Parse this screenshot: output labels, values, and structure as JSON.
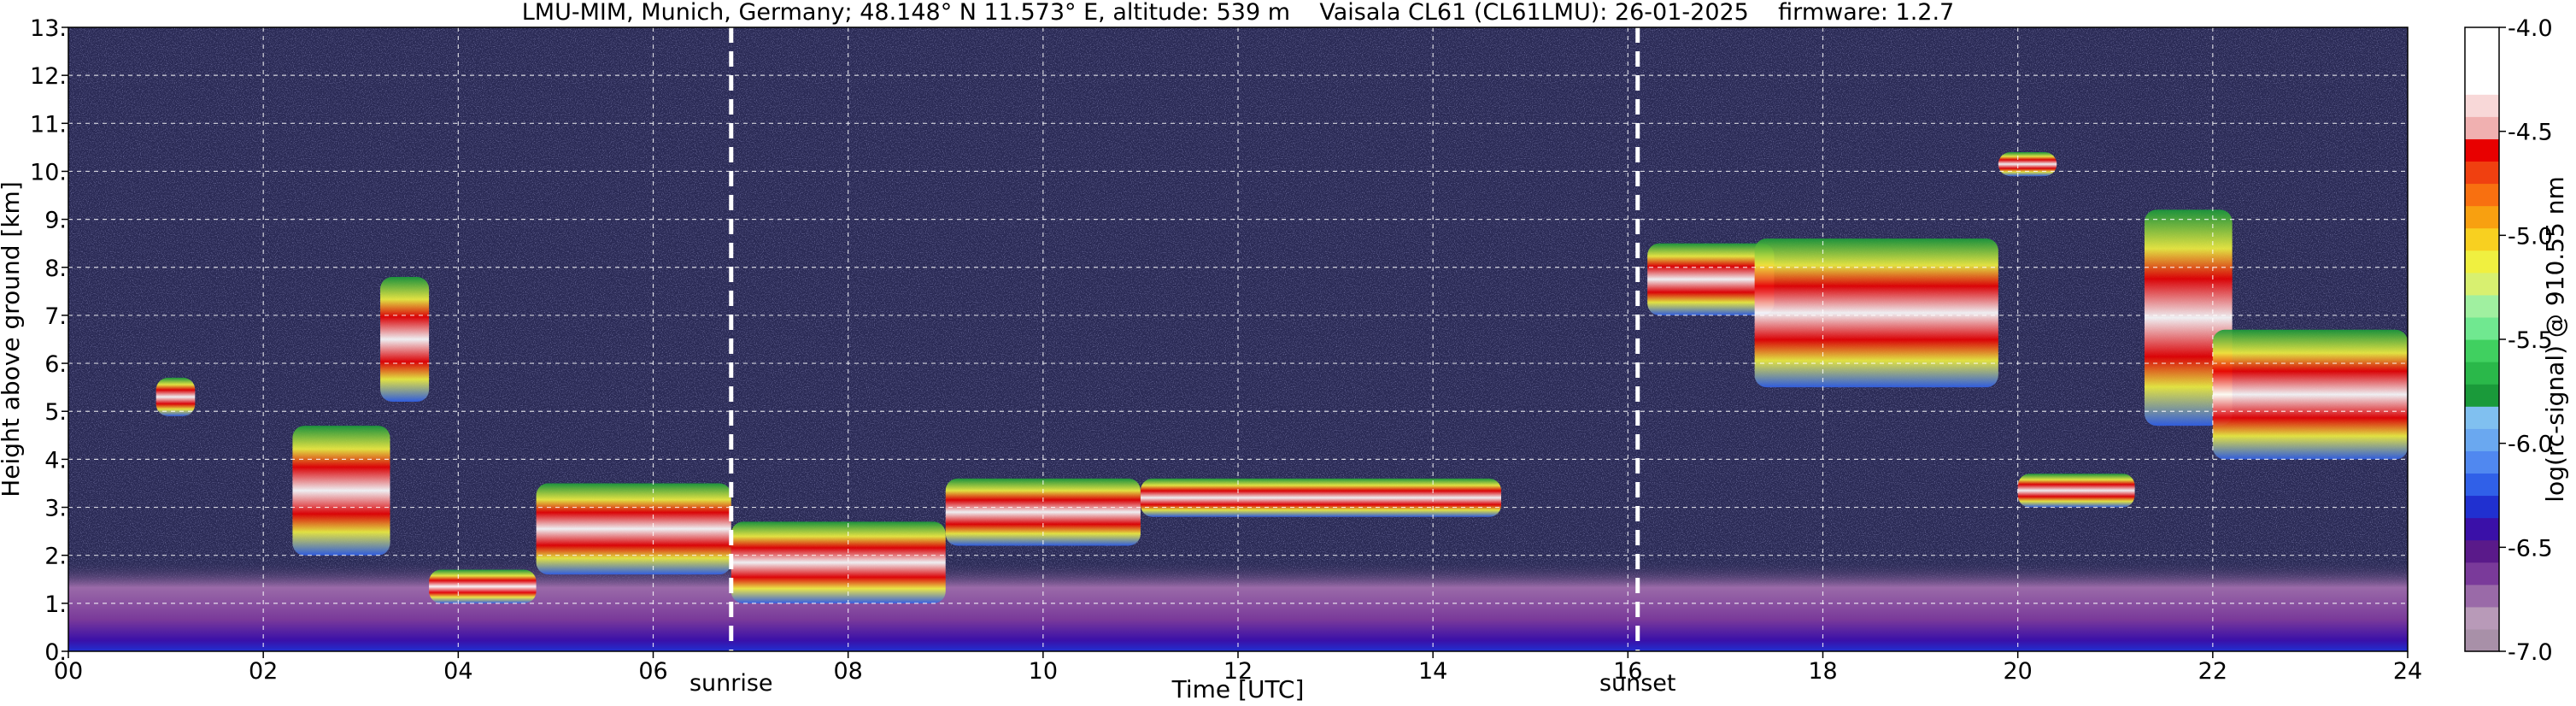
{
  "chart_data": {
    "type": "heatmap",
    "title": "LMU-MIM, Munich, Germany; 48.148° N 11.573° E, altitude: 539 m    Vaisala CL61 (CL61LMU): 26-01-2025    firmware: 1.2.7",
    "xlabel": "Time [UTC]",
    "ylabel": "Height above ground [km]",
    "xlim": [
      0,
      24
    ],
    "ylim": [
      0,
      13
    ],
    "x_ticks": [
      0,
      2,
      4,
      6,
      8,
      10,
      12,
      14,
      16,
      18,
      20,
      22,
      24
    ],
    "x_tick_labels": [
      "00",
      "02",
      "04",
      "06",
      "08",
      "10",
      "12",
      "14",
      "16",
      "18",
      "20",
      "22",
      "24"
    ],
    "y_ticks": [
      0,
      1,
      2,
      3,
      4,
      5,
      6,
      7,
      8,
      9,
      10,
      11,
      12,
      13
    ],
    "y_tick_labels": [
      "0.",
      "1.",
      "2.",
      "3.",
      "4.",
      "5.",
      "6.",
      "7.",
      "8.",
      "9.",
      "10.",
      "11.",
      "12.",
      "13."
    ],
    "grid": true,
    "markers": [
      {
        "time": 6.8,
        "label": "sunrise"
      },
      {
        "time": 16.1,
        "label": "sunset"
      }
    ],
    "colorbar": {
      "label": "log(rc-signal) @ 910.55 nm",
      "range": [
        -7.0,
        -4.0
      ],
      "ticks": [
        -7.0,
        -6.5,
        -6.0,
        -5.5,
        -5.0,
        -4.5,
        -4.0
      ],
      "tick_labels": [
        "-7.0",
        "-6.5",
        "-6.0",
        "-5.5",
        "-5.0",
        "-4.5",
        "-4.0"
      ],
      "colors": [
        "#a890a8",
        "#b89ab8",
        "#9a6aa8",
        "#7a3a9a",
        "#5a1a8a",
        "#3a10a8",
        "#2030d0",
        "#3060e8",
        "#5088f0",
        "#6aa8f0",
        "#80c0f0",
        "#1a9a3a",
        "#2ab84a",
        "#40d060",
        "#70e890",
        "#a0f0a0",
        "#d8f070",
        "#f0f040",
        "#f8d020",
        "#f8a010",
        "#f87010",
        "#f04010",
        "#e80000",
        "#f0b0b0",
        "#f8d8d8",
        "#ffffff",
        "#ffffff",
        "#ffffff"
      ]
    },
    "background_color": "#2a2a55",
    "cloud_layers": [
      {
        "t0": 0.9,
        "t1": 1.3,
        "h0": 4.9,
        "h1": 5.7
      },
      {
        "t0": 2.3,
        "t1": 3.3,
        "h0": 2.0,
        "h1": 4.7
      },
      {
        "t0": 3.2,
        "t1": 3.7,
        "h0": 5.2,
        "h1": 7.8
      },
      {
        "t0": 3.7,
        "t1": 4.8,
        "h0": 1.0,
        "h1": 1.7
      },
      {
        "t0": 4.8,
        "t1": 6.8,
        "h0": 1.6,
        "h1": 3.5
      },
      {
        "t0": 6.8,
        "t1": 9.0,
        "h0": 1.0,
        "h1": 2.7
      },
      {
        "t0": 9.0,
        "t1": 11.0,
        "h0": 2.2,
        "h1": 3.6
      },
      {
        "t0": 11.0,
        "t1": 14.7,
        "h0": 2.8,
        "h1": 3.6
      },
      {
        "t0": 16.2,
        "t1": 17.5,
        "h0": 7.0,
        "h1": 8.5
      },
      {
        "t0": 17.3,
        "t1": 19.8,
        "h0": 5.5,
        "h1": 8.6
      },
      {
        "t0": 20.0,
        "t1": 21.2,
        "h0": 3.0,
        "h1": 3.7
      },
      {
        "t0": 19.8,
        "t1": 20.4,
        "h0": 9.9,
        "h1": 10.4
      },
      {
        "t0": 21.3,
        "t1": 22.2,
        "h0": 4.7,
        "h1": 9.2
      },
      {
        "t0": 22.0,
        "t1": 24.0,
        "h0": 4.0,
        "h1": 6.7
      }
    ],
    "boundary_layer": {
      "h0": 0.0,
      "h1": 1.9
    }
  }
}
